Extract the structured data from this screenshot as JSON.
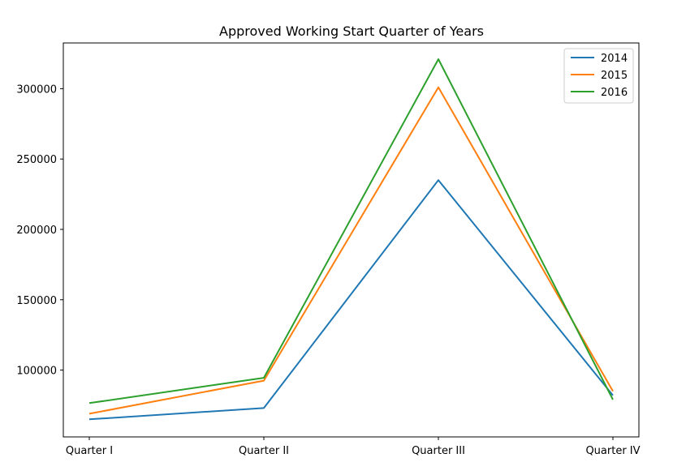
{
  "chart_data": {
    "type": "line",
    "title": "Approved Working Start Quarter of Years",
    "xlabel": "",
    "ylabel": "",
    "categories": [
      "Quarter I",
      "Quarter II",
      "Quarter III",
      "Quarter IV"
    ],
    "ylim": [
      52500,
      332500
    ],
    "yticks": [
      "100000",
      "150000",
      "200000",
      "250000",
      "300000"
    ],
    "grid": false,
    "legend_position": "top-right",
    "series": [
      {
        "name": "2014",
        "color": "#1f77b4",
        "values": [
          65000,
          73000,
          235000,
          82000
        ]
      },
      {
        "name": "2015",
        "color": "#ff7f0e",
        "values": [
          69000,
          92500,
          301000,
          85000
        ]
      },
      {
        "name": "2016",
        "color": "#2ca02c",
        "values": [
          76500,
          94500,
          321000,
          79000
        ]
      }
    ]
  }
}
